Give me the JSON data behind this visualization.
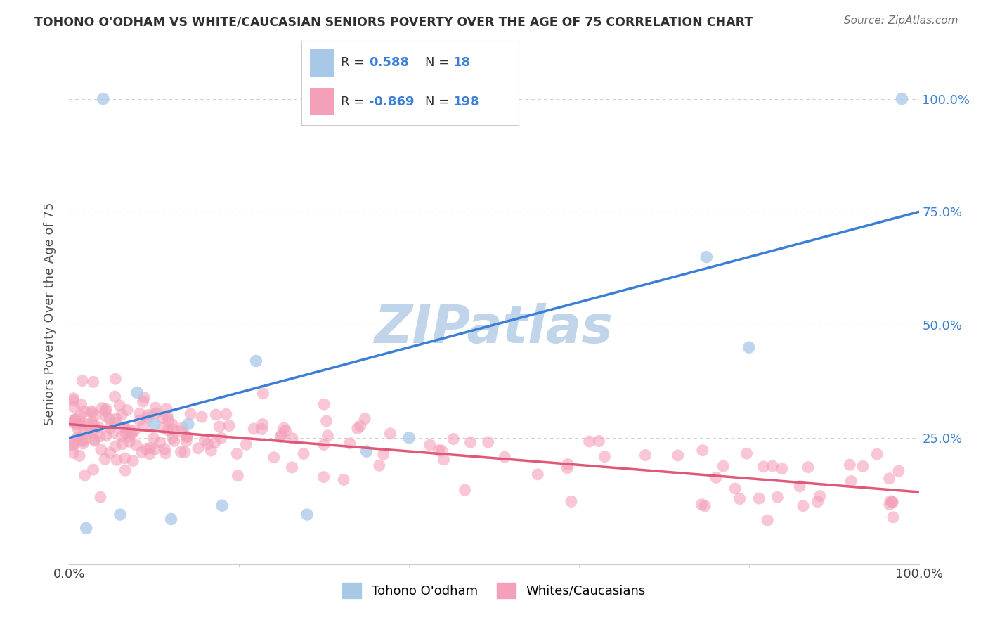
{
  "title": "TOHONO O'ODHAM VS WHITE/CAUCASIAN SENIORS POVERTY OVER THE AGE OF 75 CORRELATION CHART",
  "source": "Source: ZipAtlas.com",
  "ylabel": "Seniors Poverty Over the Age of 75",
  "xlim": [
    0,
    100
  ],
  "ylim": [
    -3,
    108
  ],
  "tohono_R": 0.588,
  "tohono_N": 18,
  "white_R": -0.869,
  "white_N": 198,
  "tohono_color": "#a8c8e8",
  "white_color": "#f4a0b8",
  "tohono_line_color": "#3a7fd5",
  "white_line_color": "#e05878",
  "watermark_color": "#c0d4ea",
  "background_color": "#ffffff",
  "grid_color": "#d0d0d0",
  "title_color": "#303030",
  "source_color": "#707070",
  "label_color": "#3a7fd5",
  "tohono_x": [
    2,
    4,
    6,
    8,
    10,
    12,
    14,
    18,
    22,
    28,
    35,
    40,
    75,
    80,
    98
  ],
  "tohono_y": [
    5,
    100,
    8,
    35,
    28,
    7,
    28,
    10,
    42,
    8,
    22,
    25,
    65,
    45,
    100
  ],
  "tohono_line_x0": 0,
  "tohono_line_y0": 25,
  "tohono_line_x1": 100,
  "tohono_line_y1": 75,
  "white_line_x0": 0,
  "white_line_y0": 28,
  "white_line_x1": 100,
  "white_line_y1": 13
}
